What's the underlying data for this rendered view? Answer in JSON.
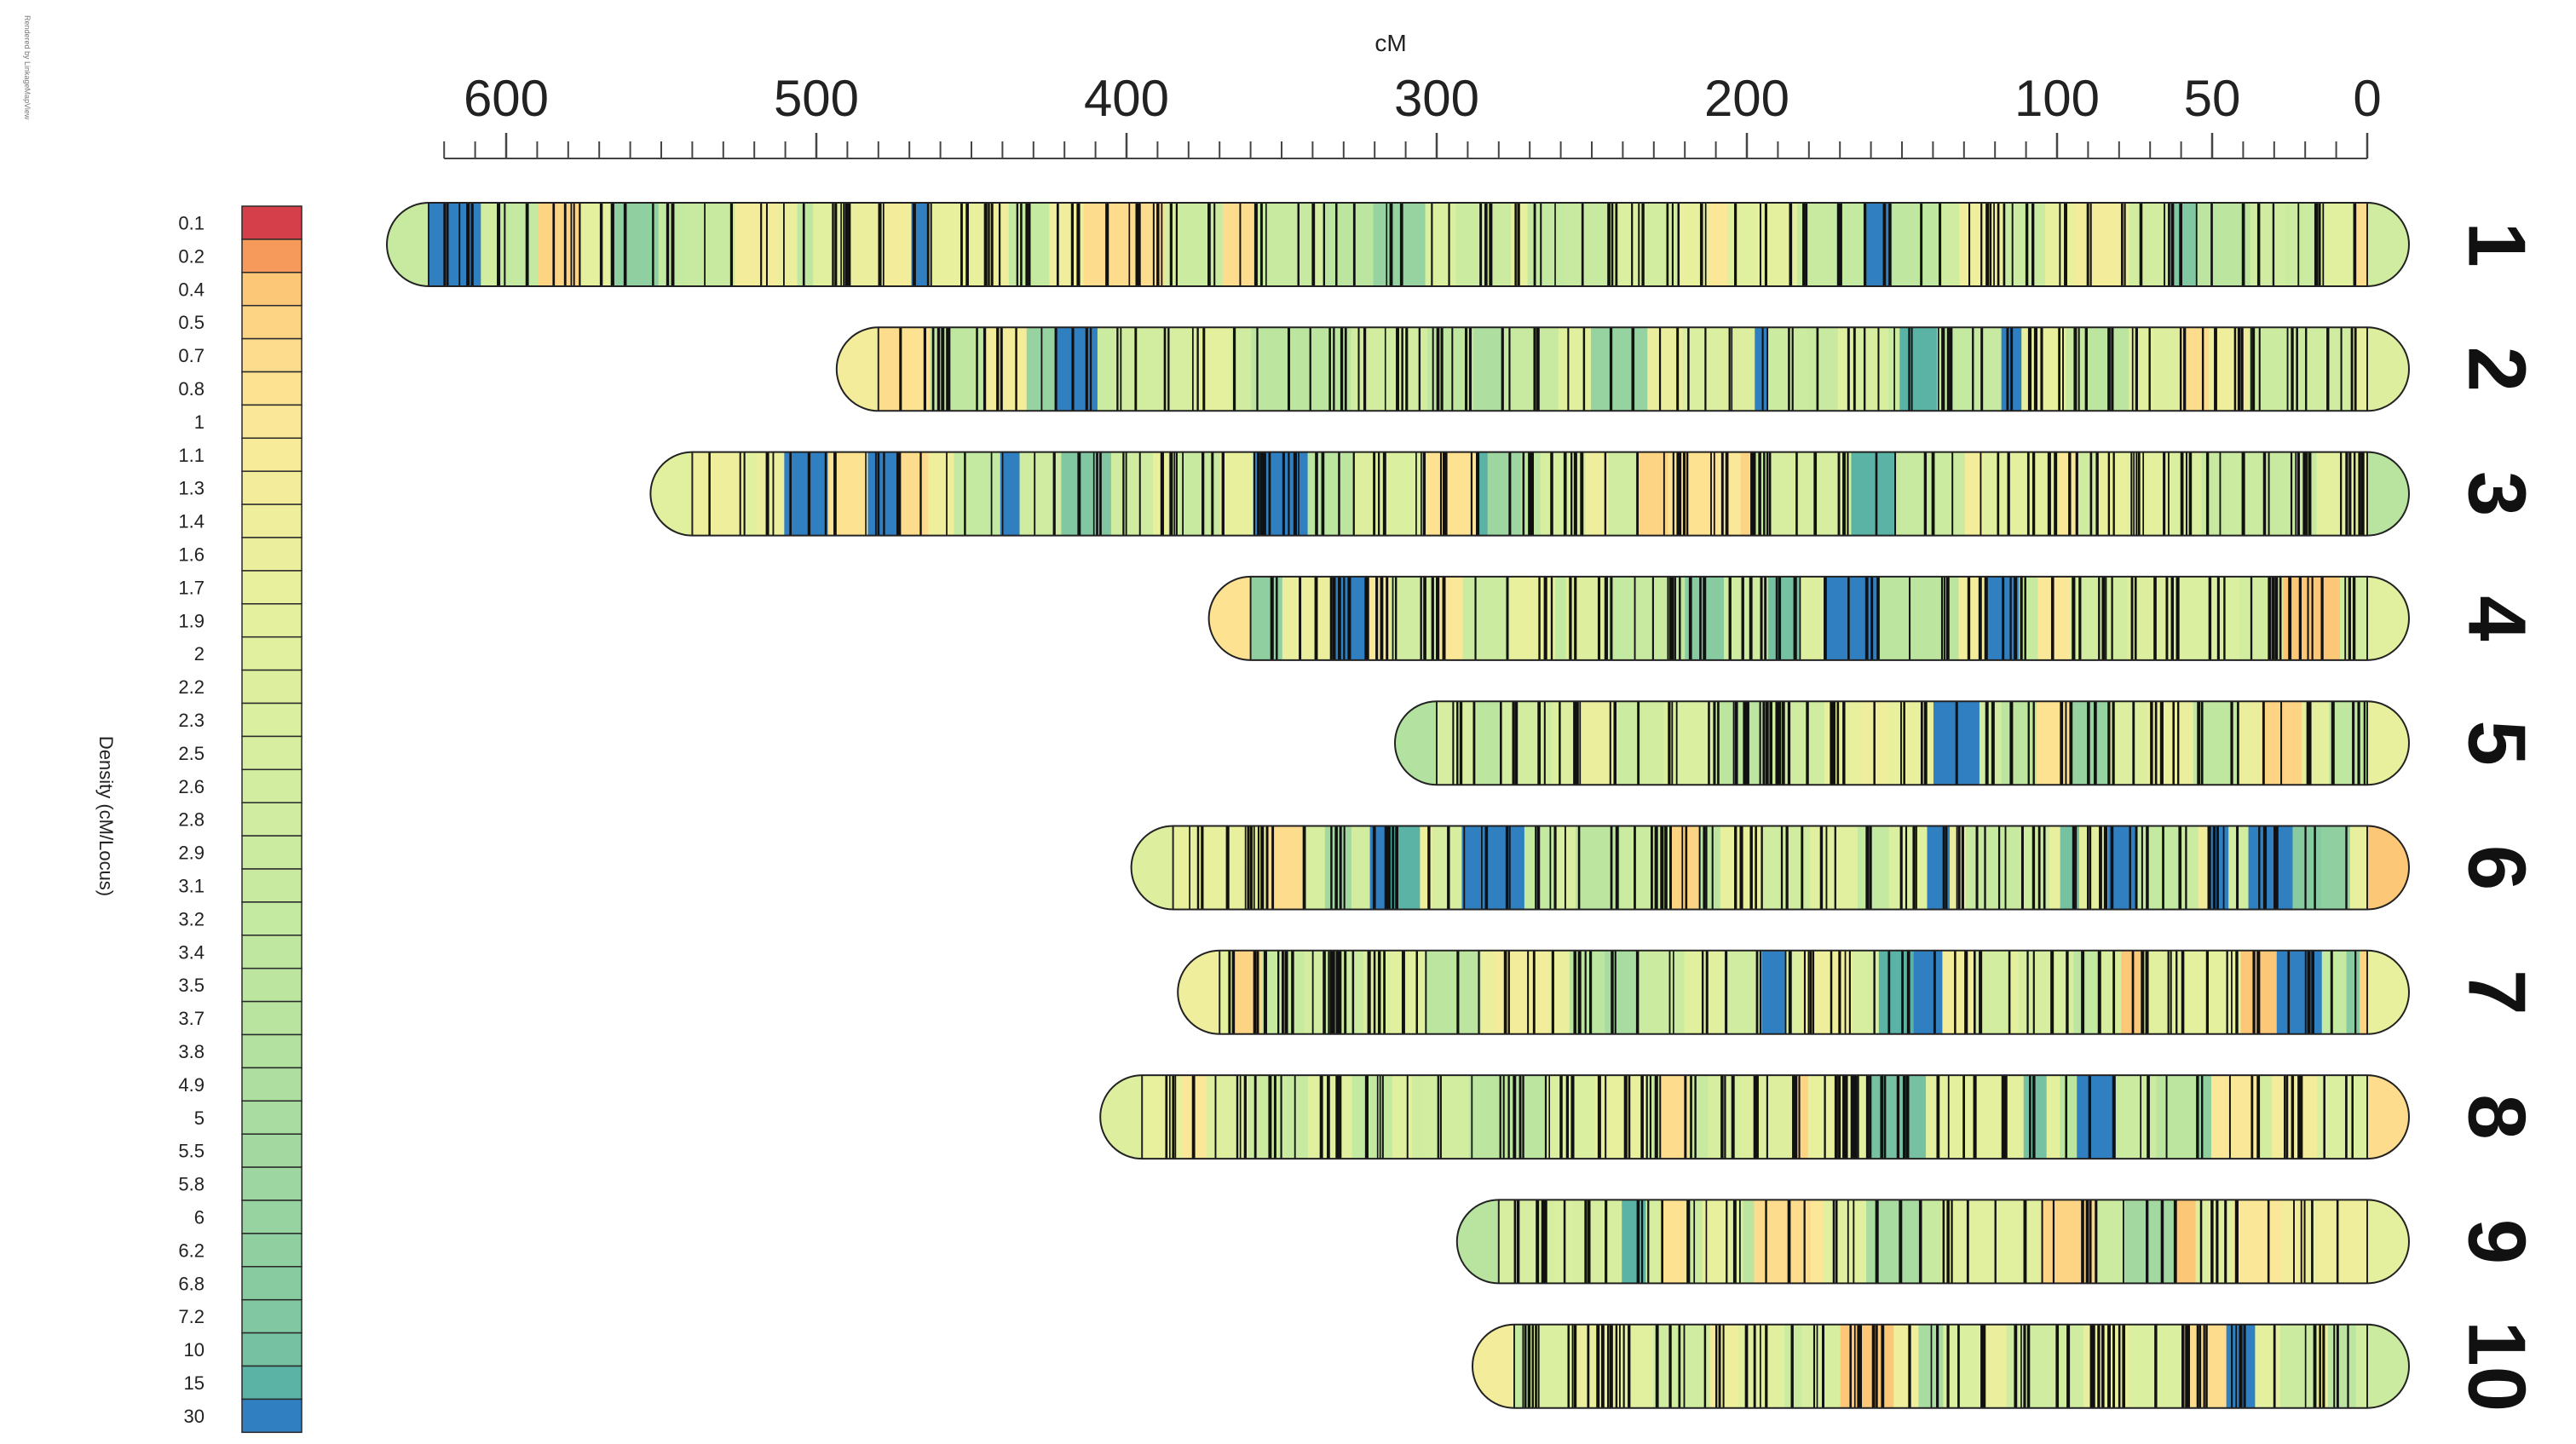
{
  "credit": "Rendered by LinkageMapView",
  "chart_data": {
    "type": "heatmap",
    "title": "",
    "axis_label": "cM",
    "axis_range": [
      0,
      625
    ],
    "axis_reversed": true,
    "tick_labels": [
      {
        "label": "600",
        "value": 600
      },
      {
        "label": "500",
        "value": 500
      },
      {
        "label": "400",
        "value": 400
      },
      {
        "label": "300",
        "value": 300
      },
      {
        "label": "200",
        "value": 200
      },
      {
        "label": "100",
        "value": 100
      },
      {
        "label": "50",
        "value": 50
      },
      {
        "label": "0",
        "value": 0
      }
    ],
    "minor_tick_step": 10,
    "legend_title": "Density (cM/Locus)",
    "legend_placement": "left",
    "legend": [
      {
        "label": "0.1",
        "color": "#d43f4a"
      },
      {
        "label": "0.2",
        "color": "#f59a5a"
      },
      {
        "label": "0.4",
        "color": "#fcc777"
      },
      {
        "label": "0.5",
        "color": "#fdd384"
      },
      {
        "label": "0.7",
        "color": "#fddc8d"
      },
      {
        "label": "0.8",
        "color": "#fce291"
      },
      {
        "label": "1",
        "color": "#fae797"
      },
      {
        "label": "1.1",
        "color": "#f7ea99"
      },
      {
        "label": "1.3",
        "color": "#f3ec9b"
      },
      {
        "label": "1.4",
        "color": "#eeee9c"
      },
      {
        "label": "1.6",
        "color": "#ebef9d"
      },
      {
        "label": "1.7",
        "color": "#e8f09e"
      },
      {
        "label": "1.9",
        "color": "#e5f09e"
      },
      {
        "label": "2",
        "color": "#e1f09f"
      },
      {
        "label": "2.2",
        "color": "#ddef9f"
      },
      {
        "label": "2.3",
        "color": "#daefa0"
      },
      {
        "label": "2.5",
        "color": "#d7eea0"
      },
      {
        "label": "2.6",
        "color": "#d3eda0"
      },
      {
        "label": "2.8",
        "color": "#cfeca0"
      },
      {
        "label": "2.9",
        "color": "#cbeba0"
      },
      {
        "label": "3.1",
        "color": "#c8eaa0"
      },
      {
        "label": "3.2",
        "color": "#c4e9a0"
      },
      {
        "label": "3.4",
        "color": "#c0e7a0"
      },
      {
        "label": "3.5",
        "color": "#bce6a0"
      },
      {
        "label": "3.7",
        "color": "#b8e4a0"
      },
      {
        "label": "3.8",
        "color": "#b3e2a0"
      },
      {
        "label": "4.9",
        "color": "#aedfa0"
      },
      {
        "label": "5",
        "color": "#a9dca0"
      },
      {
        "label": "5.5",
        "color": "#a3d9a0"
      },
      {
        "label": "5.8",
        "color": "#9dd6a0"
      },
      {
        "label": "6",
        "color": "#97d3a0"
      },
      {
        "label": "6.2",
        "color": "#90cfa0"
      },
      {
        "label": "6.8",
        "color": "#89cba1"
      },
      {
        "label": "7.2",
        "color": "#81c7a2"
      },
      {
        "label": "10",
        "color": "#77c1a3"
      },
      {
        "label": "15",
        "color": "#5ab3a5"
      },
      {
        "label": "30",
        "color": "#2f7fc1"
      }
    ],
    "chromosomes": [
      {
        "label": "1",
        "start": 0,
        "end": 625
      },
      {
        "label": "2",
        "start": 0,
        "end": 480
      },
      {
        "label": "3",
        "start": 0,
        "end": 540
      },
      {
        "label": "4",
        "start": 0,
        "end": 360
      },
      {
        "label": "5",
        "start": 0,
        "end": 300
      },
      {
        "label": "6",
        "start": 0,
        "end": 385
      },
      {
        "label": "7",
        "start": 0,
        "end": 370
      },
      {
        "label": "8",
        "start": 0,
        "end": 395
      },
      {
        "label": "9",
        "start": 0,
        "end": 280
      },
      {
        "label": "10",
        "start": 0,
        "end": 275
      }
    ]
  }
}
